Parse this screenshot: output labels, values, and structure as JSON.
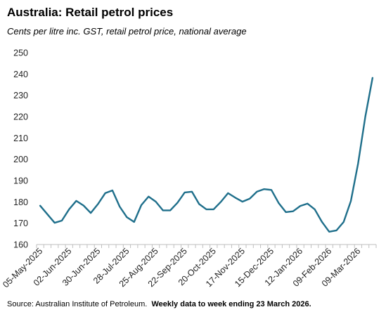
{
  "header": {
    "title": "Australia: Retail petrol prices",
    "subtitle": "Cents per litre inc. GST, retail petrol price, national average"
  },
  "footer": {
    "source": "Source: Australian Institute of Petroleum.",
    "note": "Weekly data to week ending 23 March 2026."
  },
  "colors": {
    "line": "#1f6f8b",
    "axis": "#bfbfbf",
    "text": "#222222"
  },
  "chart_data": {
    "type": "line",
    "title": "Australia: Retail petrol prices",
    "subtitle": "Cents per litre inc. GST, retail petrol price, national average",
    "xlabel": "",
    "ylabel": "",
    "ylim": [
      160,
      250
    ],
    "yticks": [
      160,
      170,
      180,
      190,
      200,
      210,
      220,
      230,
      240,
      250
    ],
    "grid": false,
    "legend": "none",
    "xtick_labels": [
      "05-May-2025",
      "02-Jun-2025",
      "30-Jun-2025",
      "28-Jul-2025",
      "25-Aug-2025",
      "22-Sep-2025",
      "20-Oct-2025",
      "17-Nov-2025",
      "15-Dec-2025",
      "12-Jan-2026",
      "09-Feb-2026",
      "09-Mar-2026"
    ],
    "x": [
      "05-May-2025",
      "12-May-2025",
      "19-May-2025",
      "26-May-2025",
      "02-Jun-2025",
      "09-Jun-2025",
      "16-Jun-2025",
      "23-Jun-2025",
      "30-Jun-2025",
      "07-Jul-2025",
      "14-Jul-2025",
      "21-Jul-2025",
      "28-Jul-2025",
      "04-Aug-2025",
      "11-Aug-2025",
      "18-Aug-2025",
      "25-Aug-2025",
      "01-Sep-2025",
      "08-Sep-2025",
      "15-Sep-2025",
      "22-Sep-2025",
      "29-Sep-2025",
      "06-Oct-2025",
      "13-Oct-2025",
      "20-Oct-2025",
      "27-Oct-2025",
      "03-Nov-2025",
      "10-Nov-2025",
      "17-Nov-2025",
      "24-Nov-2025",
      "01-Dec-2025",
      "08-Dec-2025",
      "15-Dec-2025",
      "22-Dec-2025",
      "29-Dec-2025",
      "05-Jan-2026",
      "12-Jan-2026",
      "19-Jan-2026",
      "26-Jan-2026",
      "02-Feb-2026",
      "09-Feb-2026",
      "16-Feb-2026",
      "23-Feb-2026",
      "02-Mar-2026",
      "09-Mar-2026",
      "16-Mar-2026",
      "23-Mar-2026"
    ],
    "series": [
      {
        "values": [
          178.2,
          174.2,
          170.2,
          171.2,
          176.5,
          180.5,
          178.3,
          174.8,
          179.0,
          184.1,
          185.4,
          177.8,
          172.8,
          170.6,
          178.5,
          182.5,
          180.1,
          176.0,
          176.0,
          179.6,
          184.4,
          184.8,
          179.0,
          176.5,
          176.5,
          180.0,
          184.1,
          182.0,
          180.1,
          181.5,
          184.8,
          186.0,
          185.6,
          179.5,
          175.2,
          175.6,
          178.1,
          179.2,
          176.5,
          170.6,
          166.0,
          166.6,
          170.6,
          180.4,
          198.0,
          220.0,
          238.2
        ]
      }
    ]
  }
}
